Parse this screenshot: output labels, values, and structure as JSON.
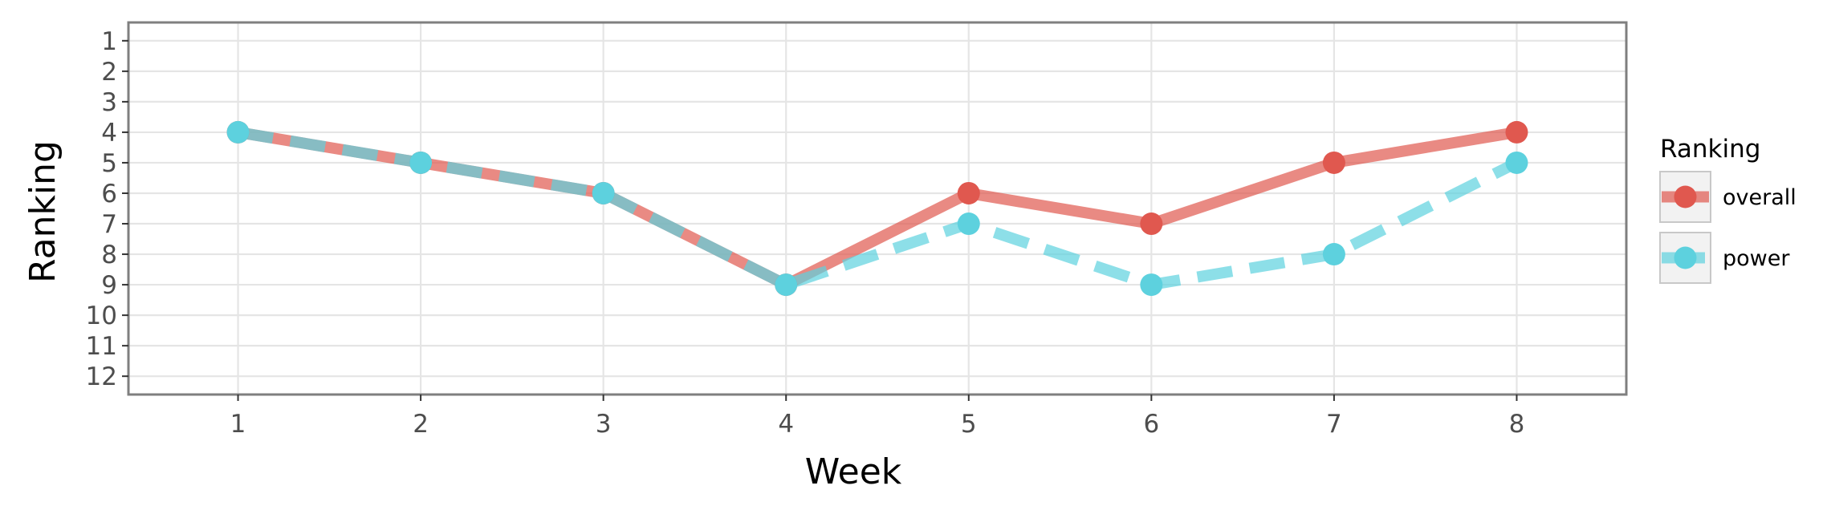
{
  "chart_data": {
    "type": "line",
    "title": "",
    "xlabel": "Week",
    "ylabel": "Ranking",
    "x": [
      1,
      2,
      3,
      4,
      5,
      6,
      7,
      8
    ],
    "xlim": [
      0.4,
      8.6
    ],
    "ylim": [
      12.6,
      0.4
    ],
    "y_reversed": true,
    "x_ticks": [
      "1",
      "2",
      "3",
      "4",
      "5",
      "6",
      "7",
      "8"
    ],
    "y_ticks": [
      "1",
      "2",
      "3",
      "4",
      "5",
      "6",
      "7",
      "8",
      "9",
      "10",
      "11",
      "12"
    ],
    "grid": true,
    "legend": {
      "title": "Ranking",
      "placement": "right"
    },
    "series": [
      {
        "name": "overall",
        "values": [
          4,
          5,
          6,
          9,
          6,
          7,
          5,
          4
        ],
        "color": "#e0584f",
        "dashed": false
      },
      {
        "name": "power",
        "values": [
          4,
          5,
          6,
          9,
          7,
          9,
          8,
          5
        ],
        "color": "#5dd1de",
        "dashed": true
      }
    ]
  }
}
